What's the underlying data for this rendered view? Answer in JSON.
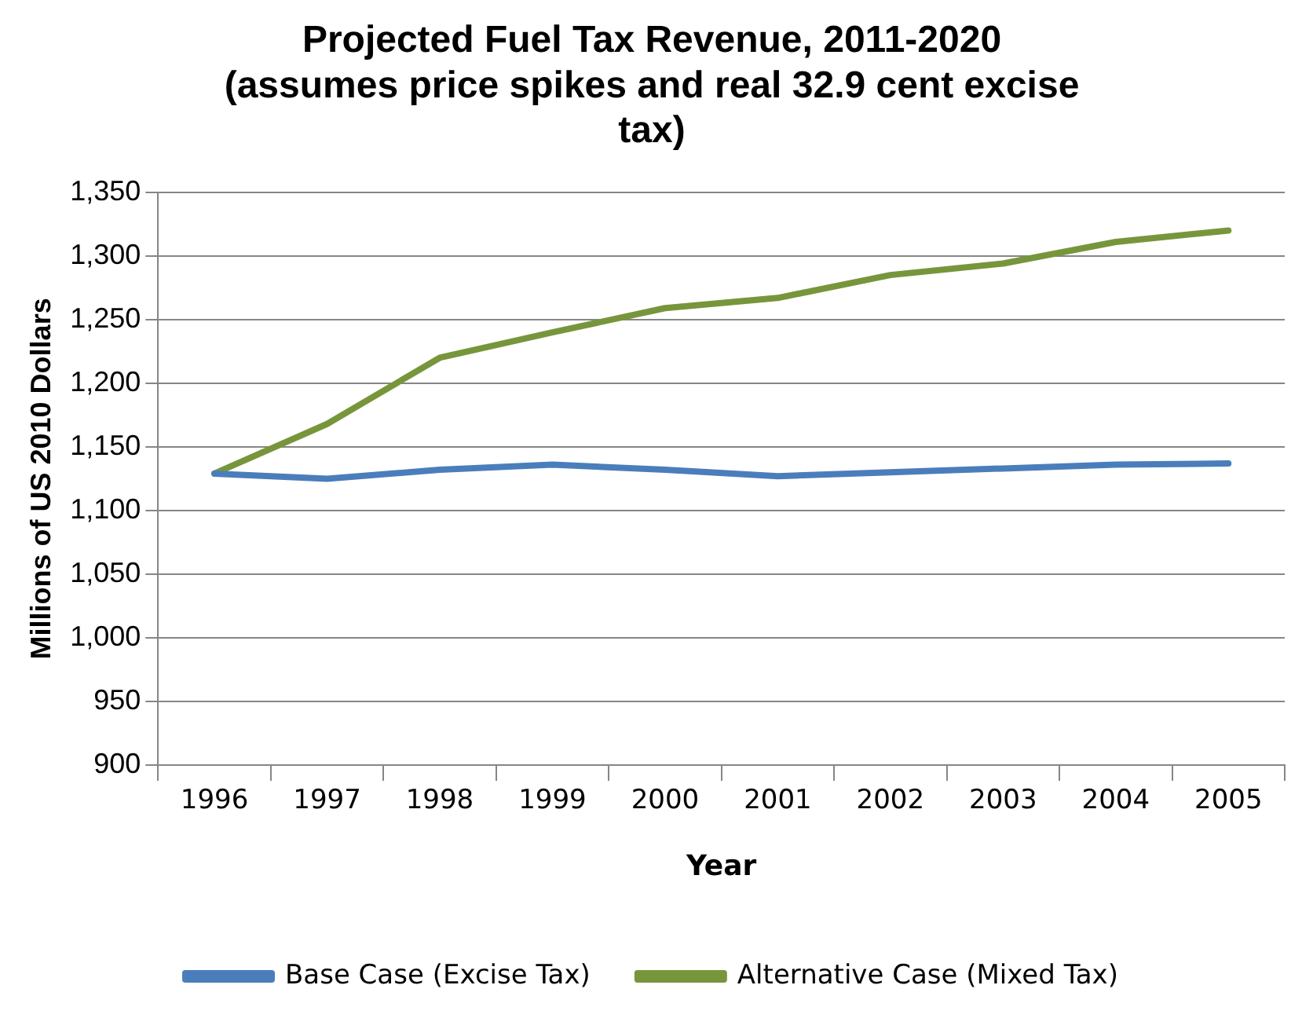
{
  "chart_data": {
    "type": "line",
    "title": "Projected Fuel Tax Revenue, 2011-2020 (assumes price spikes and real 32.9 cent excise tax)",
    "xlabel": "Year",
    "ylabel": "Millions of US 2010 Dollars",
    "categories": [
      "1996",
      "1997",
      "1998",
      "1999",
      "2000",
      "2001",
      "2002",
      "2003",
      "2004",
      "2005"
    ],
    "series": [
      {
        "name": "Base Case (Excise Tax)",
        "color": "#4a7ebb",
        "values": [
          1129,
          1125,
          1132,
          1136,
          1132,
          1127,
          1130,
          1133,
          1136,
          1137
        ]
      },
      {
        "name": "Alternative Case (Mixed Tax)",
        "color": "#77963c",
        "values": [
          1129,
          1168,
          1220,
          1240,
          1259,
          1267,
          1285,
          1294,
          1311,
          1320
        ]
      }
    ],
    "ylim": [
      900,
      1350
    ],
    "yticks": [
      900,
      950,
      {
        "value": 1000,
        "label": "1,000"
      },
      {
        "value": 1050,
        "label": "1,050"
      },
      {
        "value": 1100,
        "label": "1,100"
      },
      {
        "value": 1150,
        "label": "1,150"
      },
      {
        "value": 1200,
        "label": "1,200"
      },
      {
        "value": 1250,
        "label": "1,250"
      },
      {
        "value": 1300,
        "label": "1,300"
      },
      {
        "value": 1350,
        "label": "1,350"
      }
    ],
    "grid": "y",
    "legend": "bottom",
    "marker": "none",
    "line_style": "solid"
  }
}
